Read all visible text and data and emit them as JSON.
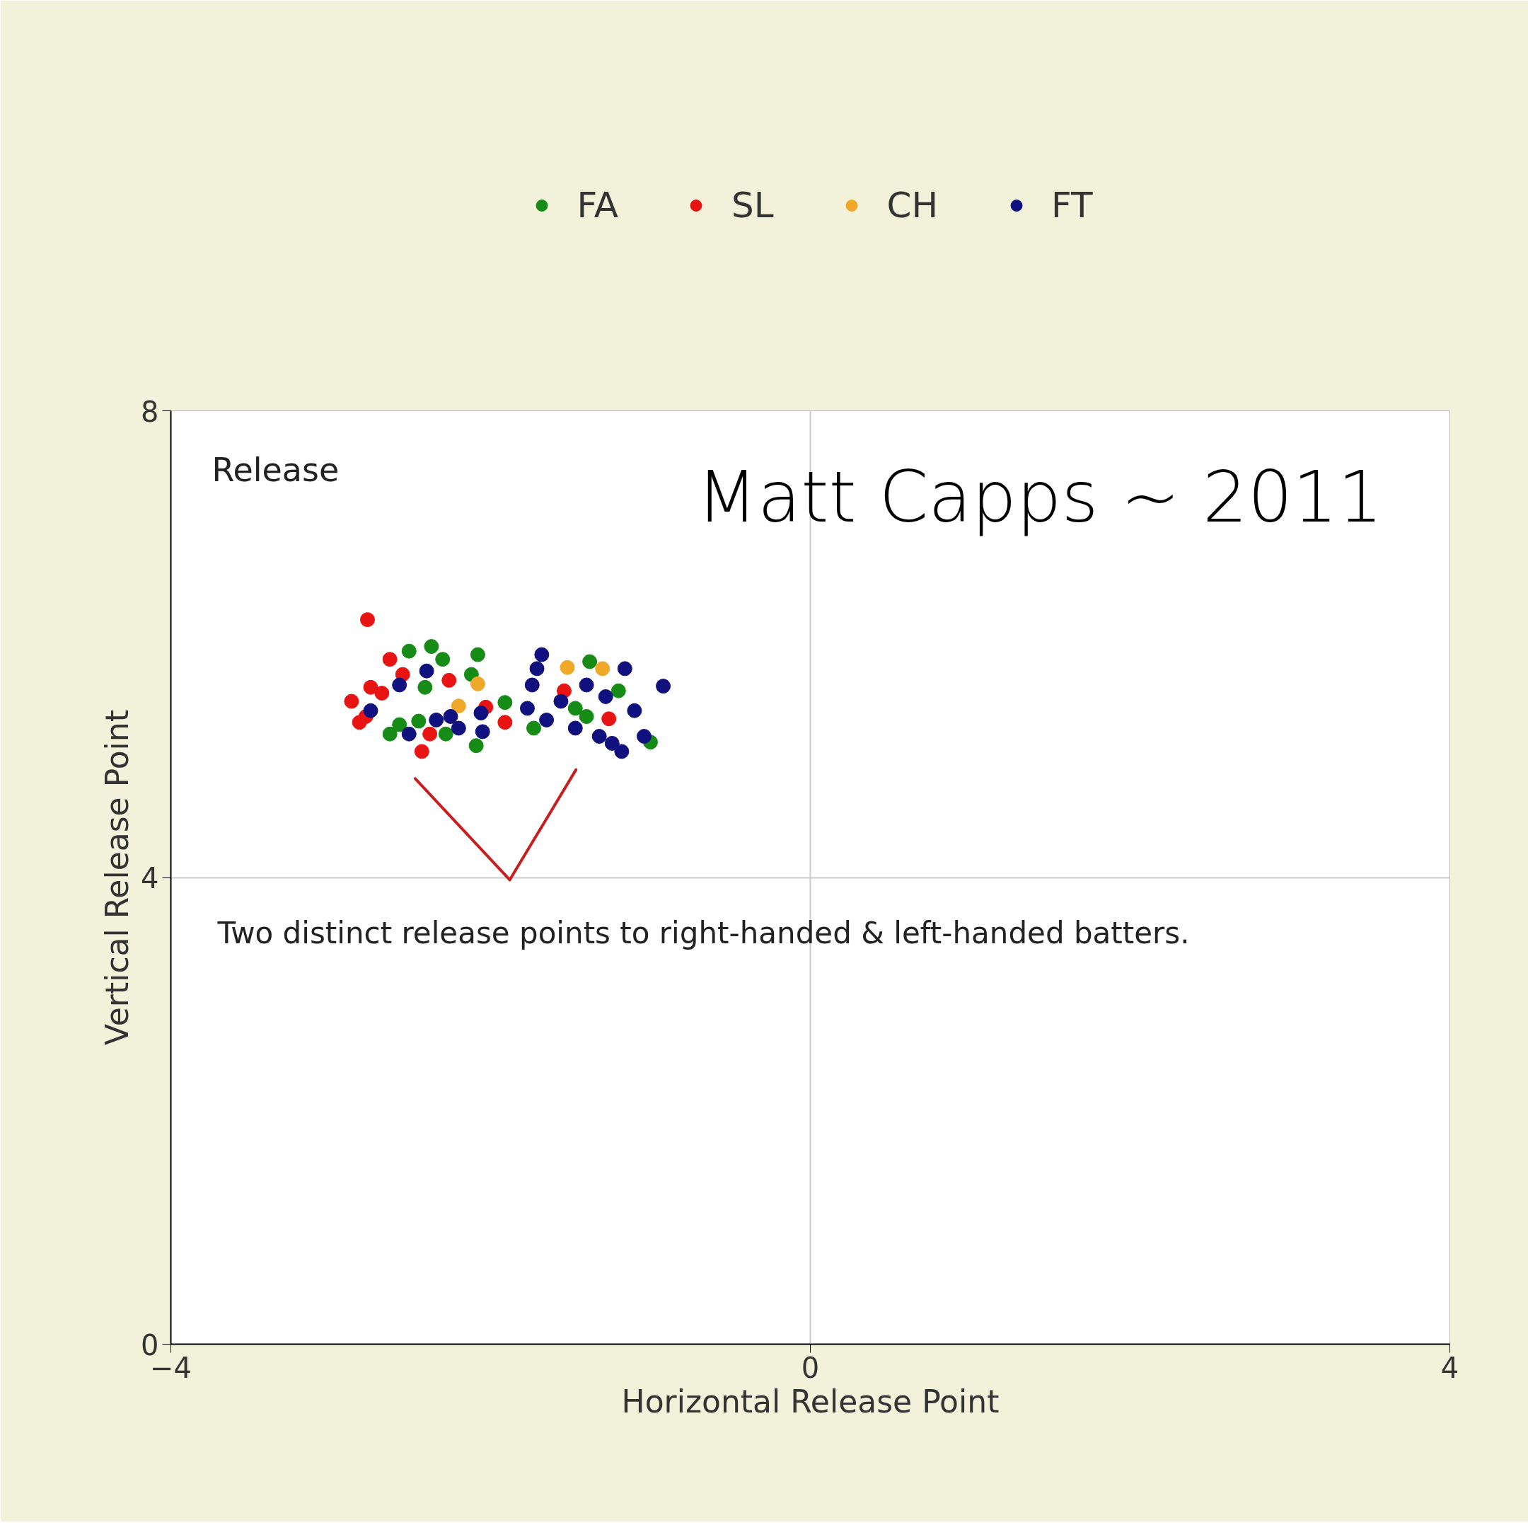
{
  "chart_data": {
    "type": "scatter",
    "title": "Matt Capps ~ 2011",
    "subtitle": "Release",
    "xlabel": "Horizontal Release Point",
    "ylabel": "Vertical Release Point",
    "annotations": [
      "Two distinct release points to right-handed & left-handed batters."
    ],
    "xlim": [
      -4,
      4
    ],
    "ylim": [
      0,
      8
    ],
    "xticks": [
      -4,
      0,
      4
    ],
    "yticks": [
      0,
      4,
      8
    ],
    "grid": true,
    "legend": "top",
    "marker": "circle",
    "series": [
      {
        "name": "FA",
        "color": "#168c16",
        "x": [
          -2.51,
          -2.37,
          -2.3,
          -2.08,
          -2.12,
          -2.41,
          -2.63,
          -2.57,
          -2.28,
          -2.09,
          -1.91,
          -1.73,
          -1.38,
          -1.47,
          -1.4,
          -1.2,
          -1.0,
          -2.45
        ],
        "values": [
          5.94,
          5.98,
          5.87,
          5.91,
          5.74,
          5.63,
          5.23,
          5.31,
          5.23,
          5.13,
          5.5,
          5.28,
          5.85,
          5.45,
          5.38,
          5.6,
          5.16,
          5.34
        ]
      },
      {
        "name": "SL",
        "color": "#e81414",
        "x": [
          -2.77,
          -2.63,
          -2.87,
          -2.82,
          -2.75,
          -2.68,
          -2.43,
          -2.38,
          -2.26,
          -2.03,
          -1.91,
          -1.54,
          -1.26,
          -2.78,
          -2.55
        ],
        "values": [
          6.21,
          5.87,
          5.51,
          5.33,
          5.63,
          5.58,
          5.08,
          5.23,
          5.69,
          5.46,
          5.33,
          5.6,
          5.36,
          5.38,
          5.74
        ]
      },
      {
        "name": "CH",
        "color": "#f0a828",
        "x": [
          -2.2,
          -1.52,
          -1.3,
          -2.08
        ],
        "values": [
          5.47,
          5.8,
          5.79,
          5.66
        ]
      },
      {
        "name": "FT",
        "color": "#10107e",
        "x": [
          -2.4,
          -2.57,
          -2.75,
          -2.51,
          -2.34,
          -2.2,
          -2.05,
          -2.06,
          -1.68,
          -1.71,
          -1.74,
          -1.77,
          -1.65,
          -1.47,
          -1.32,
          -1.16,
          -1.1,
          -0.92,
          -1.04,
          -1.24,
          -1.18,
          -1.56,
          -1.4,
          -1.28,
          -2.25
        ],
        "values": [
          5.77,
          5.65,
          5.43,
          5.23,
          5.35,
          5.28,
          5.25,
          5.41,
          5.91,
          5.79,
          5.65,
          5.45,
          5.35,
          5.28,
          5.21,
          5.79,
          5.43,
          5.64,
          5.21,
          5.15,
          5.08,
          5.51,
          5.65,
          5.55,
          5.38
        ]
      }
    ]
  }
}
